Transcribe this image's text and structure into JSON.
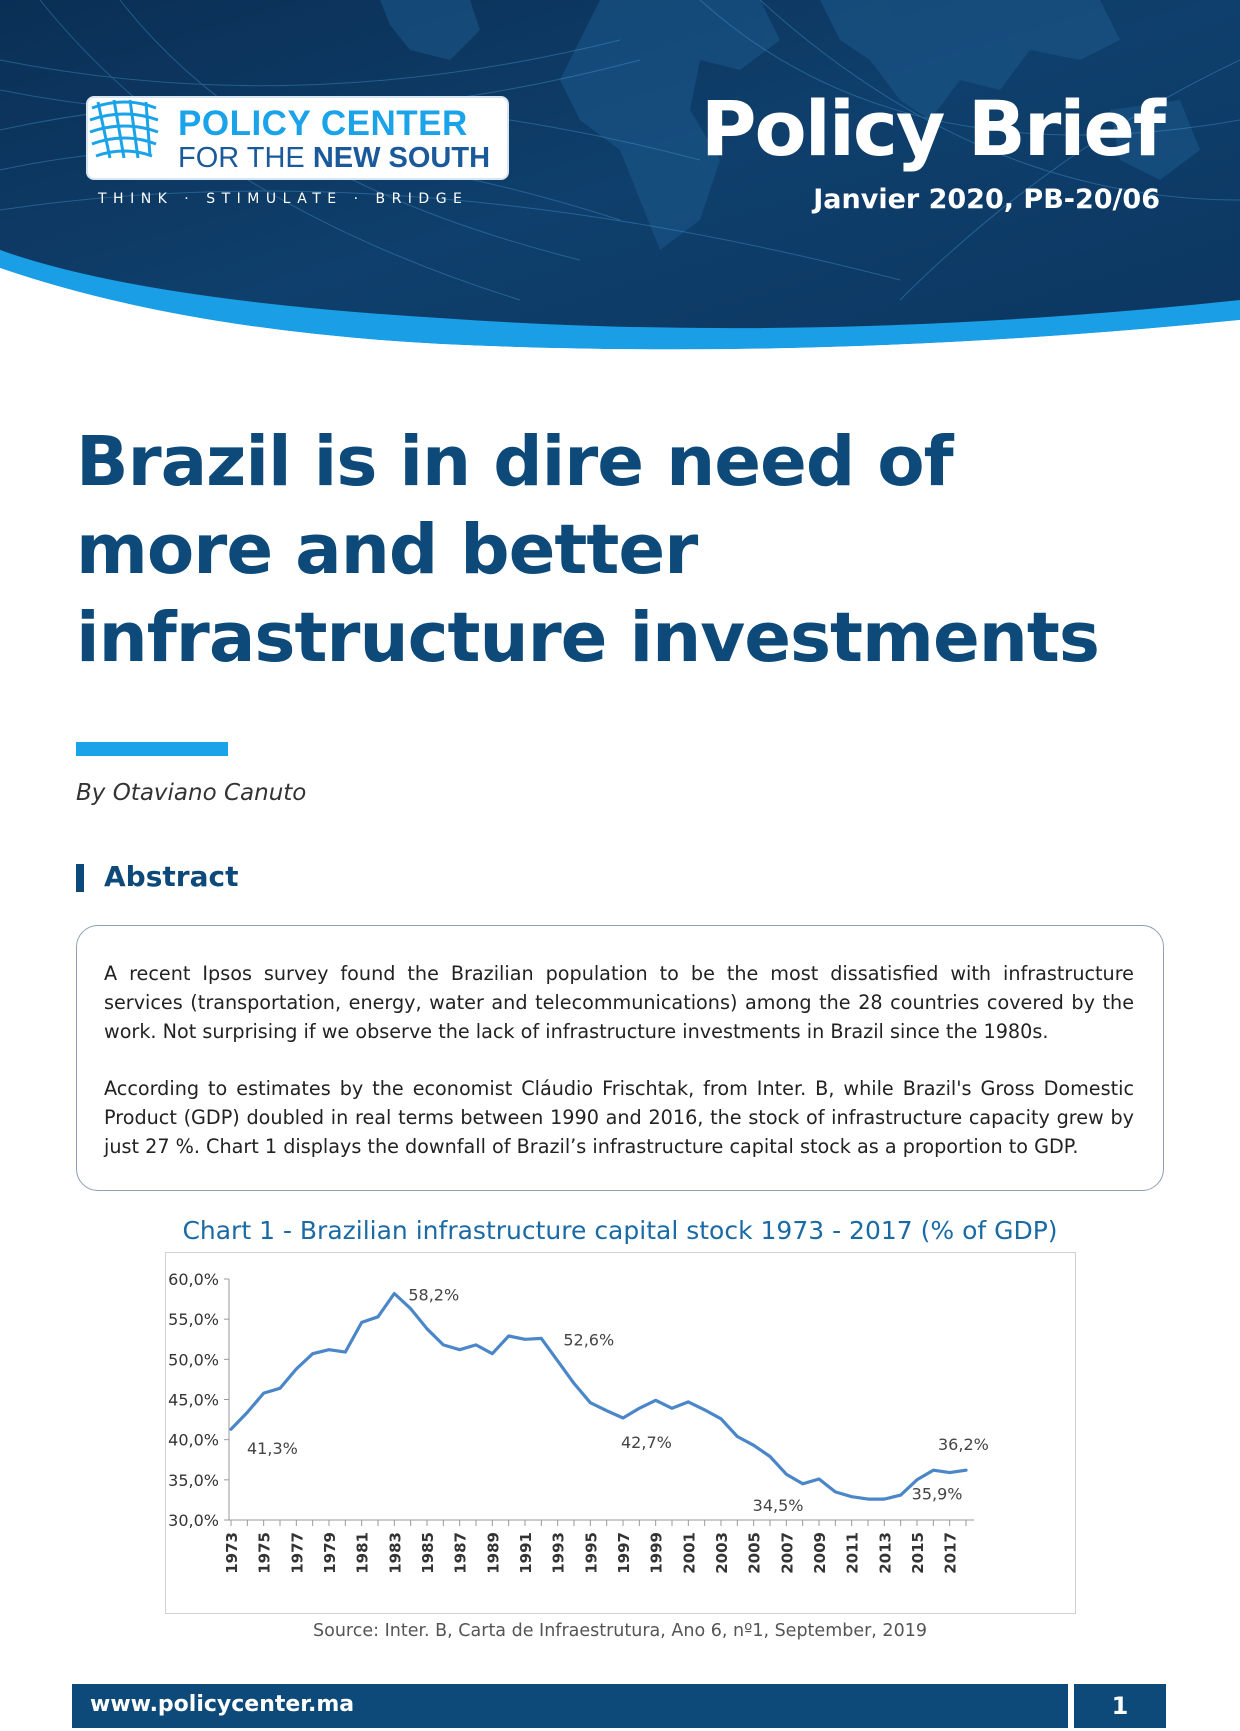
{
  "header": {
    "logo_line1": "POLICY CENTER",
    "logo_line2_prefix": "FOR THE ",
    "logo_line2_bold": "NEW SOUTH",
    "tagline": "THINK · STIMULATE · BRIDGE",
    "doc_type": "Policy Brief",
    "date_ref": "Janvier 2020, PB-20/06"
  },
  "article": {
    "title": "Brazil is in dire need of more and better infrastructure investments",
    "author": "By Otaviano Canuto",
    "abstract_heading": "Abstract",
    "abstract_p1": "A recent Ipsos survey found the Brazilian population to be the most dissatisfied with infrastructure services (transportation, energy, water and telecommunications) among the 28 countries covered by the work. Not surprising if we observe the lack of infrastructure investments in Brazil since the 1980s.",
    "abstract_p2": "According to estimates by the economist Cláudio Frischtak, from Inter. B, while Brazil's Gross Domestic Product (GDP) doubled in real terms between 1990 and 2016, the stock of infrastructure capacity grew by just 27 %. Chart 1 displays the downfall of Brazil’s infrastructure capital stock as a proportion to GDP."
  },
  "chart_caption": {
    "title": "Chart 1 - Brazilian infrastructure capital stock 1973 - 2017 (% of GDP)",
    "source": "Source: Inter. B, Carta de Infraestrutura, Ano 6, nº1, September, 2019"
  },
  "chart_data": {
    "type": "line",
    "title": "Chart 1 - Brazilian infrastructure capital stock 1973 - 2017 (% of GDP)",
    "xlabel": "",
    "ylabel": "",
    "ylim": [
      30,
      60
    ],
    "y_ticks": [
      "60,0%",
      "55,0%",
      "50,0%",
      "45,0%",
      "40,0%",
      "35,0%",
      "30,0%"
    ],
    "y_tick_values": [
      60,
      55,
      50,
      45,
      40,
      35,
      30
    ],
    "x_tick_labels": [
      "1973",
      "1975",
      "1977",
      "1979",
      "1981",
      "1983",
      "1985",
      "1987",
      "1989",
      "1991",
      "1993",
      "1995",
      "1997",
      "1999",
      "2001",
      "2003",
      "2005",
      "2007",
      "2009",
      "2011",
      "2013",
      "2015",
      "2017"
    ],
    "grid": false,
    "color": "#4a86c8",
    "x": [
      1973,
      1974,
      1975,
      1976,
      1977,
      1978,
      1979,
      1980,
      1981,
      1982,
      1983,
      1984,
      1985,
      1986,
      1987,
      1988,
      1989,
      1990,
      1991,
      1992,
      1993,
      1994,
      1995,
      1996,
      1997,
      1998,
      1999,
      2000,
      2001,
      2002,
      2003,
      2004,
      2005,
      2006,
      2007,
      2008,
      2009,
      2010,
      2011,
      2012,
      2013,
      2014,
      2015,
      2016,
      2017,
      2018
    ],
    "values": [
      41.3,
      43.4,
      45.8,
      46.4,
      48.8,
      50.7,
      51.2,
      50.9,
      54.6,
      55.3,
      58.2,
      56.3,
      53.8,
      51.8,
      51.2,
      51.8,
      50.7,
      52.9,
      52.5,
      52.6,
      49.8,
      47.0,
      44.6,
      43.6,
      42.7,
      43.9,
      44.9,
      43.9,
      44.7,
      43.7,
      42.6,
      40.4,
      39.3,
      37.9,
      35.7,
      34.5,
      35.1,
      33.5,
      32.9,
      32.6,
      32.6,
      33.1,
      35.0,
      36.2,
      35.9,
      36.2
    ],
    "data_labels": [
      {
        "x": 1973,
        "text": "41,3%"
      },
      {
        "x": 1983,
        "text": "58,2%"
      },
      {
        "x": 1992,
        "text": "52,6%"
      },
      {
        "x": 1997,
        "text": "42,7%"
      },
      {
        "x": 2008,
        "text": "34,5%"
      },
      {
        "x": 2017,
        "text": "35,9%"
      },
      {
        "x": 2018,
        "text": "36,2%"
      }
    ]
  },
  "footer": {
    "url": "www.policycenter.ma",
    "page_number": "1"
  },
  "colors": {
    "brand_dark": "#0d4a7a",
    "brand_light": "#1aa3e8",
    "line": "#4a86c8"
  },
  "icons": {
    "logo": "globe-mesh-icon"
  }
}
